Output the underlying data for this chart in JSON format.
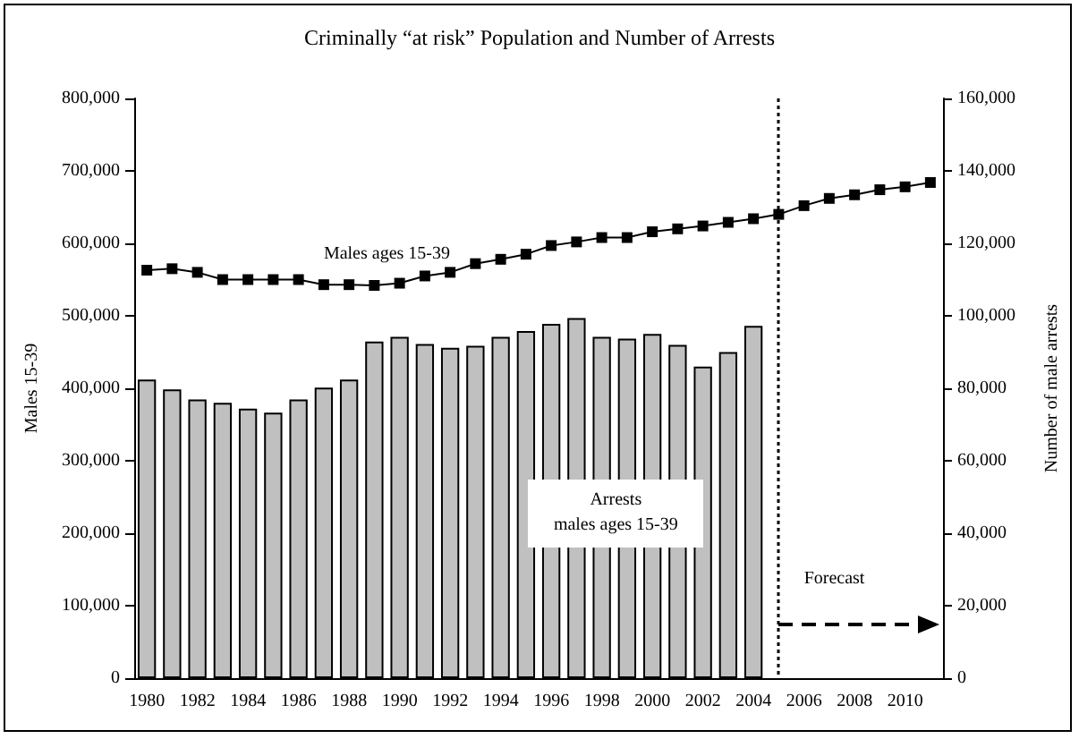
{
  "chart_data": {
    "type": "bar",
    "title": "Criminally “at risk” Population and Number of Arrests",
    "ylabel": "Males 15-39",
    "y2label": "Number of male arrests",
    "categories": [
      "1980",
      null,
      "1982",
      null,
      "1984",
      null,
      "1986",
      null,
      "1988",
      null,
      "1990",
      null,
      "1992",
      null,
      "1994",
      null,
      "1996",
      null,
      "1998",
      null,
      "2000",
      null,
      "2002",
      null,
      "2004",
      null,
      "2006",
      null,
      "2008",
      null,
      "2010",
      null
    ],
    "series": [
      {
        "name": "Arrests\nmales ages 15-39",
        "axis": "y2",
        "color": "#c0c0c0",
        "values": [
          82400,
          79700,
          76900,
          76000,
          74400,
          73300,
          76900,
          80200,
          82400,
          92900,
          94200,
          92200,
          91200,
          91700,
          94200,
          95800,
          97800,
          99400,
          94200,
          93700,
          95000,
          92000,
          86000,
          90000,
          97200,
          null,
          null,
          null,
          null,
          null,
          null,
          null
        ]
      },
      {
        "name": "Males ages 15-39",
        "type": "line",
        "axis": "y",
        "color": "#000000",
        "marker": "square",
        "line_style": "solid",
        "values": [
          563000,
          565000,
          560000,
          550000,
          550000,
          550000,
          550000,
          543000,
          543000,
          542000,
          545000,
          555000,
          560000,
          572000,
          578000,
          585000,
          597000,
          602000,
          608000,
          608000,
          616000,
          620000,
          624000,
          629000,
          634000,
          640000,
          652000,
          662000,
          667000,
          674000,
          678000,
          684000
        ]
      }
    ],
    "ylim": [
      0,
      800000
    ],
    "yticks": [
      0,
      {
        "value": 100000,
        "label": "100,000"
      },
      {
        "value": 200000,
        "label": "200,000"
      },
      {
        "value": 300000,
        "label": "300,000"
      },
      {
        "value": 400000,
        "label": "400,000"
      },
      {
        "value": 500000,
        "label": "500,000"
      },
      {
        "value": 600000,
        "label": "600,000"
      },
      {
        "value": 700000,
        "label": "700,000"
      },
      {
        "value": 800000,
        "label": "800,000"
      }
    ],
    "y2lim": [
      0,
      160000
    ],
    "y2ticks": [
      0,
      {
        "value": 20000,
        "label": "20,000"
      },
      {
        "value": 40000,
        "label": "40,000"
      },
      {
        "value": 60000,
        "label": "60,000"
      },
      {
        "value": 80000,
        "label": "80,000"
      },
      {
        "value": 100000,
        "label": "100,000"
      },
      {
        "value": 120000,
        "label": "120,000"
      },
      {
        "value": 140000,
        "label": "140,000"
      },
      {
        "value": 160000,
        "label": "160,000"
      }
    ],
    "annotations": [
      "Forecast"
    ],
    "legend": false
  }
}
